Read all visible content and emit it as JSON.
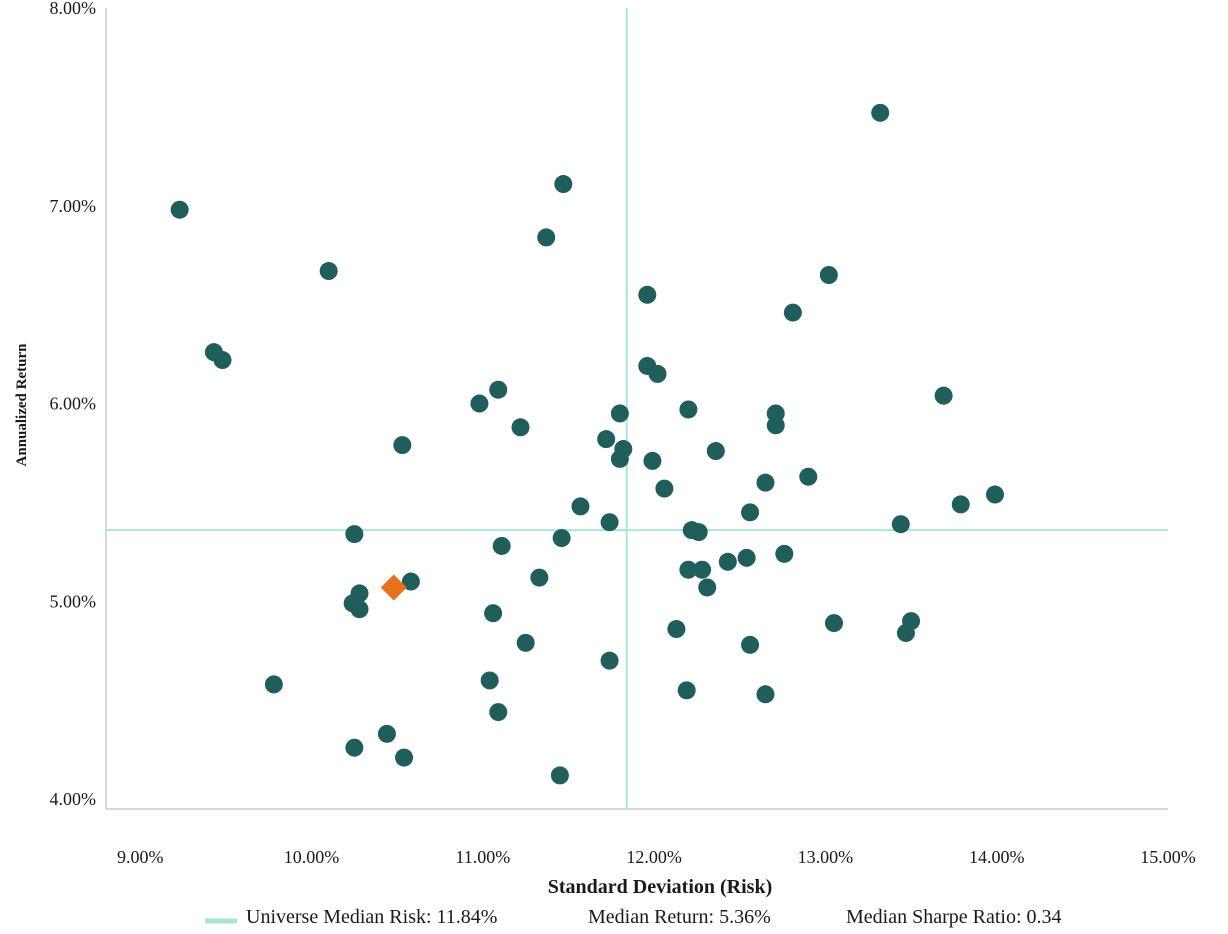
{
  "chart_data": {
    "type": "scatter",
    "xlabel": "Standard Deviation (Risk)",
    "ylabel": "Annualized Return",
    "xlim": [
      0.088,
      0.15
    ],
    "ylim": [
      0.0395,
      0.08
    ],
    "x_ticks": [
      {
        "value": 0.09,
        "label": "9.00%"
      },
      {
        "value": 0.1,
        "label": "10.00%"
      },
      {
        "value": 0.11,
        "label": "11.00%"
      },
      {
        "value": 0.12,
        "label": "12.00%"
      },
      {
        "value": 0.13,
        "label": "13.00%"
      },
      {
        "value": 0.14,
        "label": "14.00%"
      },
      {
        "value": 0.15,
        "label": "15.00%"
      }
    ],
    "y_ticks": [
      {
        "value": 0.04,
        "label": "4.00%"
      },
      {
        "value": 0.05,
        "label": "5.00%"
      },
      {
        "value": 0.06,
        "label": "6.00%"
      },
      {
        "value": 0.07,
        "label": "7.00%"
      },
      {
        "value": 0.08,
        "label": "8.00%"
      }
    ],
    "grid": false,
    "median_risk": 0.1184,
    "median_return": 0.0536,
    "colors": {
      "universe": "#1f5e5b",
      "highlight": "#e8711c",
      "median_line": "#a8e6cf",
      "axis": "#cccccc"
    },
    "legend": {
      "placement": "bottom",
      "risk_text": "Universe Median Risk: 11.84%",
      "return_text": "Median Return: 5.36%",
      "sharpe_text": "Median Sharpe Ratio: 0.34"
    },
    "series": [
      {
        "marker": "circle",
        "color": "#1f5e5b",
        "points": [
          [
            0.0923,
            0.0698
          ],
          [
            0.0943,
            0.0626
          ],
          [
            0.0948,
            0.0622
          ],
          [
            0.0978,
            0.0458
          ],
          [
            0.101,
            0.0667
          ],
          [
            0.1025,
            0.0534
          ],
          [
            0.1024,
            0.0499
          ],
          [
            0.1028,
            0.0504
          ],
          [
            0.1028,
            0.0496
          ],
          [
            0.1025,
            0.0426
          ],
          [
            0.1044,
            0.0433
          ],
          [
            0.1054,
            0.0421
          ],
          [
            0.1053,
            0.0579
          ],
          [
            0.1058,
            0.051
          ],
          [
            0.1098,
            0.06
          ],
          [
            0.1109,
            0.0607
          ],
          [
            0.1111,
            0.0528
          ],
          [
            0.1106,
            0.0494
          ],
          [
            0.1104,
            0.046
          ],
          [
            0.1109,
            0.0444
          ],
          [
            0.1122,
            0.0588
          ],
          [
            0.1125,
            0.0479
          ],
          [
            0.1133,
            0.0512
          ],
          [
            0.1137,
            0.0684
          ],
          [
            0.1147,
            0.0711
          ],
          [
            0.1146,
            0.0532
          ],
          [
            0.1145,
            0.0412
          ],
          [
            0.1157,
            0.0548
          ],
          [
            0.1172,
            0.0582
          ],
          [
            0.1174,
            0.054
          ],
          [
            0.1174,
            0.047
          ],
          [
            0.118,
            0.0595
          ],
          [
            0.118,
            0.0572
          ],
          [
            0.1182,
            0.0577
          ],
          [
            0.1196,
            0.0655
          ],
          [
            0.1196,
            0.0619
          ],
          [
            0.1202,
            0.0615
          ],
          [
            0.1199,
            0.0571
          ],
          [
            0.1206,
            0.0557
          ],
          [
            0.1213,
            0.0486
          ],
          [
            0.122,
            0.0597
          ],
          [
            0.122,
            0.0516
          ],
          [
            0.1222,
            0.0536
          ],
          [
            0.1226,
            0.0535
          ],
          [
            0.1228,
            0.0516
          ],
          [
            0.1231,
            0.0507
          ],
          [
            0.1219,
            0.0455
          ],
          [
            0.1236,
            0.0576
          ],
          [
            0.1243,
            0.052
          ],
          [
            0.1254,
            0.0522
          ],
          [
            0.1256,
            0.0545
          ],
          [
            0.1256,
            0.0478
          ],
          [
            0.1265,
            0.056
          ],
          [
            0.1265,
            0.0453
          ],
          [
            0.1271,
            0.0595
          ],
          [
            0.1271,
            0.0589
          ],
          [
            0.1276,
            0.0524
          ],
          [
            0.1281,
            0.0646
          ],
          [
            0.129,
            0.0563
          ],
          [
            0.1302,
            0.0665
          ],
          [
            0.1305,
            0.0489
          ],
          [
            0.1332,
            0.0747
          ],
          [
            0.1344,
            0.0539
          ],
          [
            0.1347,
            0.0484
          ],
          [
            0.135,
            0.049
          ],
          [
            0.1369,
            0.0604
          ],
          [
            0.1379,
            0.0549
          ],
          [
            0.1399,
            0.0554
          ]
        ]
      },
      {
        "marker": "diamond",
        "color": "#e8711c",
        "points": [
          [
            0.1048,
            0.0507
          ]
        ]
      }
    ]
  }
}
